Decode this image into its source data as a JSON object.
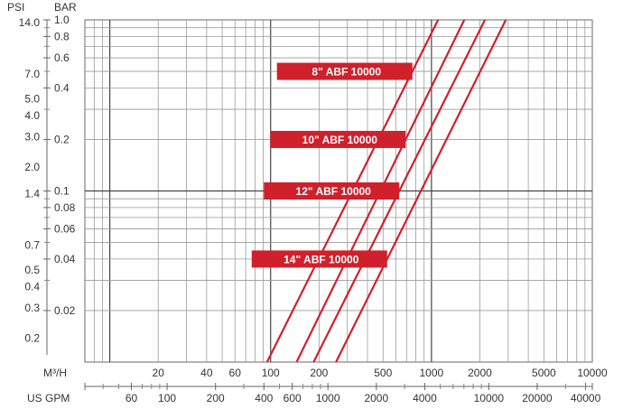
{
  "chart_data": {
    "type": "line",
    "log_scale": {
      "x": true,
      "y": true
    },
    "grid": true,
    "x_axis": {
      "primary_label": "M³/H",
      "primary_range": [
        7,
        10000
      ],
      "primary_ticks": [
        "20",
        "40",
        "60",
        "100",
        "200",
        "500",
        "1000",
        "2000",
        "5000",
        "10000"
      ],
      "secondary_label": "US GPM",
      "secondary_ticks": [
        "60",
        "100",
        "200",
        "400",
        "600",
        "1000",
        "2000",
        "4000",
        "10000",
        "20000",
        "40000"
      ]
    },
    "y_axis": {
      "bar_label": "BAR",
      "bar_range": [
        0.01,
        1.0
      ],
      "bar_ticks": [
        "1.0",
        "0.8",
        "0.6",
        "0.4",
        "0.2",
        "0.1",
        "0.08",
        "0.06",
        "0.04",
        "0.02"
      ],
      "psi_label": "PSI",
      "psi_ticks": [
        "14.0",
        "7.0",
        "5.0",
        "4.0",
        "3.0",
        "2.0",
        "1.4",
        "0.7",
        "0.5",
        "0.4",
        "0.3",
        "0.2"
      ]
    },
    "series": [
      {
        "name": "8\" ABF 10000",
        "color": "#d0202c",
        "points": [
          [
            95,
            0.01
          ],
          [
            1100,
            1.0
          ]
        ]
      },
      {
        "name": "10\" ABF 10000",
        "color": "#d0202c",
        "points": [
          [
            145,
            0.01
          ],
          [
            1600,
            1.0
          ]
        ]
      },
      {
        "name": "12\" ABF 10000",
        "color": "#d0202c",
        "points": [
          [
            185,
            0.01
          ],
          [
            2150,
            1.0
          ]
        ]
      },
      {
        "name": "14\" ABF 10000",
        "color": "#d0202c",
        "points": [
          [
            255,
            0.01
          ],
          [
            2900,
            1.0
          ]
        ]
      }
    ],
    "annotations": [
      {
        "text": "8\" ABF 10000",
        "series": 0,
        "bar": 0.5
      },
      {
        "text": "10\" ABF 10000",
        "series": 1,
        "bar": 0.2
      },
      {
        "text": "12\" ABF 10000",
        "series": 2,
        "bar": 0.1
      },
      {
        "text": "14\" ABF 10000",
        "series": 3,
        "bar": 0.04
      }
    ]
  }
}
